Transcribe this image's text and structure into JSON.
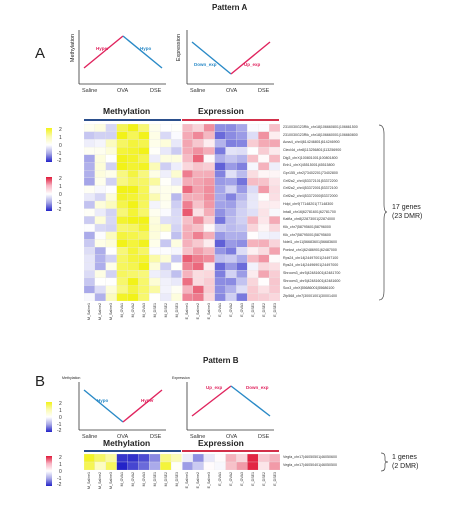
{
  "pattern_a": {
    "title": "Pattern A",
    "panel_label": "A",
    "methylation_plot": {
      "y_label": "Methylation",
      "x_labels": [
        "Saline",
        "OVA",
        "DSE"
      ],
      "up_tag": "Hyper",
      "down_tag": "Hypo",
      "up_color": "#e0245e",
      "down_color": "#2a8ac7"
    },
    "expression_plot": {
      "y_label": "Expression",
      "x_labels": [
        "Saline",
        "OVA",
        "DSE"
      ],
      "down_tag": "Down_exp",
      "up_tag": "Up_exp",
      "up_color": "#e0245e",
      "down_color": "#2a8ac7"
    },
    "heatmap": {
      "methylation_header": "Methylation",
      "expression_header": "Expression",
      "methylation_bar_color": "#2b4f8c",
      "expression_bar_color": "#d2304a",
      "colorbar_methylation": [
        "2",
        "1",
        "0",
        "-1",
        "-2"
      ],
      "colorbar_expression": [
        "2",
        "1",
        "0",
        "-1",
        "-2"
      ],
      "methylation_columns": [
        "M_Saline1",
        "M_Saline2",
        "M_Saline3",
        "M_OVA1",
        "M_OVA2",
        "M_OVA3",
        "M_DSE1",
        "M_DSE2",
        "M_DSE3"
      ],
      "expression_columns": [
        "E_Saline1",
        "E_Saline2",
        "E_Saline3",
        "E_OVA1",
        "E_OVA2",
        "E_OVA3",
        "E_DSE1",
        "E_DSE2",
        "E_DSE3"
      ],
      "rows": [
        "2310030G23Rik_chr18|106660801|106661500",
        "2310030G23Rik_chr18|106660001|106660800",
        "Acss4_chr4|614246801|614246900",
        "Clecl4d_chr8|113256801|113256900",
        "Dlg3_chrX|100801001|100801800",
        "Enh1_chrX|45515001|45515800",
        "Gpr155_chr2|73402201|73402800",
        "Grif2a2_chr4|53372101|53372200",
        "Grif2a2_chr4|53372001|53372100",
        "Grif2a2_chr4|53372000|53372000",
        "Hdpl_chr9|77148201|77148300",
        "Inta8_chr16|62781601|62781700",
        "Katfla_chr8|22873001|22874000",
        "Klk_chr7|58795601|58796000",
        "Klk_chr7|58795001|58795600",
        "Ndel1_chr11|56683601|56683600",
        "Ponkst_chr1|62486901|62487000",
        "Rps24_chr14|24497001|24497100",
        "Rps24_chr14|24496901|24497000",
        "Shroom3_chr5|42481601|42481700",
        "Shroom3_chr5|42481601|42481600",
        "Sox3_chrX|55686001|55686100",
        "Zfp568_chr7|30001001|30001400"
      ],
      "cluster_note_line1": "17 genes",
      "cluster_note_line2": "(23 DMR)"
    }
  },
  "pattern_b": {
    "title": "Pattern B",
    "panel_label": "B",
    "methylation_plot": {
      "y_label": "Methylation",
      "x_labels": [
        "Saline",
        "OVA",
        "DSE"
      ],
      "down_tag": "Hypo",
      "up_tag": "Hyper",
      "up_color": "#e0245e",
      "down_color": "#2a8ac7"
    },
    "expression_plot": {
      "y_label": "Expression",
      "x_labels": [
        "Saline",
        "OVA",
        "DSE"
      ],
      "up_tag": "Up_exp",
      "down_tag": "Down_exp",
      "up_color": "#e0245e",
      "down_color": "#2a8ac7"
    },
    "heatmap": {
      "methylation_header": "Methylation",
      "expression_header": "Expression",
      "methylation_bar_color": "#2b4f8c",
      "expression_bar_color": "#d2304a",
      "colorbar_methylation": [
        "2",
        "1",
        "0",
        "-1",
        "-2"
      ],
      "colorbar_expression": [
        "2",
        "1",
        "0",
        "-1",
        "-2"
      ],
      "methylation_columns": [
        "M_Saline1",
        "M_Saline2",
        "M_Saline3",
        "M_OVA1",
        "M_OVA2",
        "M_OVA3",
        "M_DSE1",
        "M_DSE2",
        "M_DSE3"
      ],
      "expression_columns": [
        "E_Saline1",
        "E_Saline2",
        "E_Saline3",
        "E_OVA1",
        "E_OVA2",
        "E_OVA3",
        "E_DSE1",
        "E_DSE2",
        "E_DSE3"
      ],
      "rows": [
        "Vegfa_chr17|46050501|46050600",
        "Vegfa_chr17|46050401|46050500"
      ],
      "cluster_note_line1": "1 genes",
      "cluster_note_line2": "(2 DMR)"
    }
  }
}
